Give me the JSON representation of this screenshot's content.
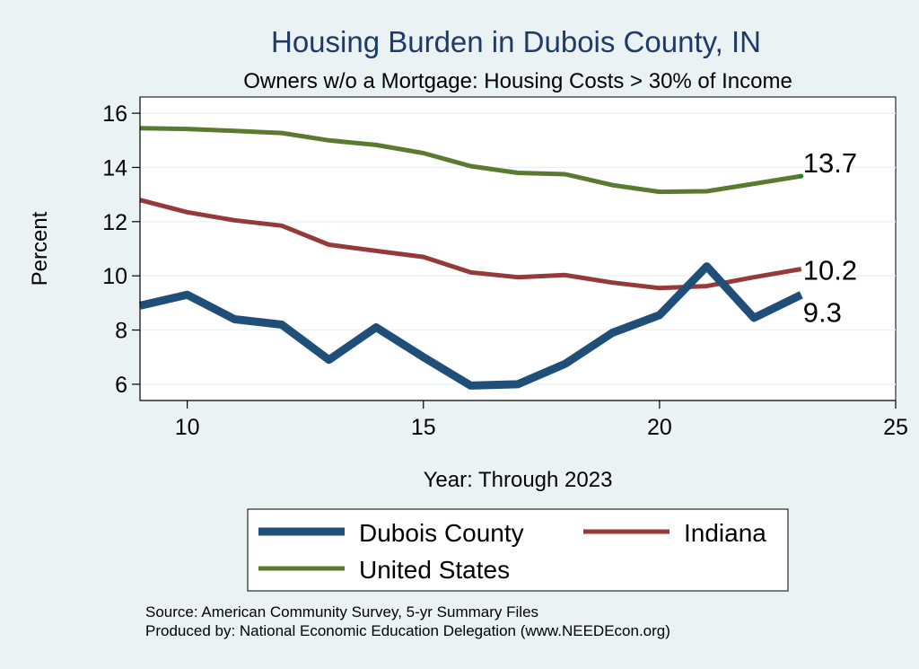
{
  "chart_data": {
    "type": "line",
    "title": "Housing Burden in Dubois County, IN",
    "subtitle": "Owners w/o a Mortgage: Housing Costs > 30% of Income",
    "xlabel": "Year: Through 2023",
    "ylabel": "Percent",
    "xlim": [
      9,
      25
    ],
    "ylim": [
      5.4,
      16.6
    ],
    "xticks": [
      10,
      15,
      20,
      25
    ],
    "yticks": [
      6,
      8,
      10,
      12,
      14,
      16
    ],
    "x": [
      9,
      10,
      11,
      12,
      13,
      14,
      15,
      16,
      17,
      18,
      19,
      20,
      21,
      22,
      23
    ],
    "series": [
      {
        "name": "Dubois County",
        "color": "#1f4e79",
        "end_label": "9.3",
        "values": [
          8.9,
          9.3,
          8.4,
          8.2,
          6.9,
          8.1,
          7.0,
          5.95,
          6.0,
          6.75,
          7.9,
          8.55,
          10.35,
          8.45,
          9.3
        ]
      },
      {
        "name": "Indiana",
        "color": "#953a3a",
        "end_label": "10.2",
        "values": [
          12.8,
          12.35,
          12.05,
          11.85,
          11.15,
          10.92,
          10.7,
          10.13,
          9.95,
          10.03,
          9.75,
          9.55,
          9.62,
          9.95,
          10.25
        ]
      },
      {
        "name": "United States",
        "color": "#5a7a2f",
        "end_label": "13.7",
        "values": [
          15.45,
          15.42,
          15.35,
          15.27,
          15.0,
          14.83,
          14.53,
          14.05,
          13.8,
          13.75,
          13.35,
          13.1,
          13.12,
          13.4,
          13.68
        ]
      }
    ],
    "legend": {
      "position": "bottom",
      "entries": [
        "Dubois County",
        "Indiana",
        "United States"
      ]
    },
    "source": "Source: American Community Survey, 5-yr Summary Files",
    "producer": "Produced by: National Economic Education Delegation (www.NEEDEcon.org)"
  }
}
